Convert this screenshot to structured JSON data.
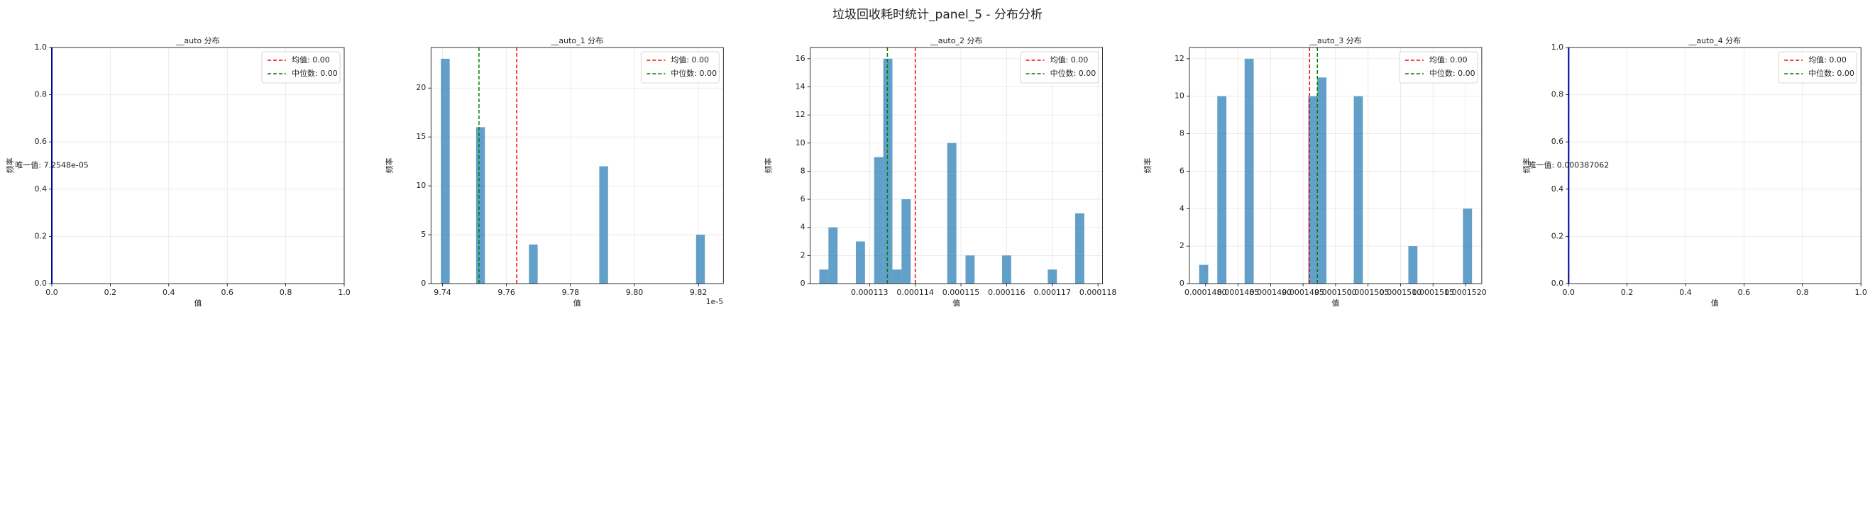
{
  "title": "垃圾回收耗时统计_panel_5 - 分布分析",
  "chart_data": [
    {
      "type": "single_value",
      "title": "__auto 分布",
      "xlabel": "值",
      "ylabel": "频率",
      "value": 7.2548e-05,
      "annotation": "唯一值: 7.2548e-05",
      "color": "blue",
      "mean": {
        "value": 7.2548e-05,
        "label": "均值: 0.00",
        "color": "red"
      },
      "median": {
        "value": 7.2548e-05,
        "label": "中位数: 0.00",
        "color": "green"
      },
      "xlim": [
        0,
        1
      ],
      "ylim": [
        0,
        1
      ],
      "xticks": [
        {
          "value": 0,
          "label": "0.0"
        },
        0.2,
        0.4,
        0.6,
        0.8,
        {
          "value": 1,
          "label": "1.0"
        }
      ],
      "yticks": [
        {
          "value": 0,
          "label": "0.0"
        },
        0.2,
        0.4,
        0.6,
        0.8,
        {
          "value": 1,
          "label": "1.0"
        }
      ],
      "grid": true,
      "legend": "upper right"
    },
    {
      "type": "histogram",
      "title": "__auto_1 分布",
      "xlabel": "值",
      "ylabel": "频率",
      "x_offset": "1e-5",
      "color": "#1f77b4",
      "alpha": 0.7,
      "bins": [
        9.7395,
        9.74225,
        9.745,
        9.74775,
        9.7505,
        9.75325,
        9.756,
        9.75875,
        9.7615,
        9.76425,
        9.767,
        9.76975,
        9.7725,
        9.77525,
        9.778,
        9.78075,
        9.7835,
        9.78625,
        9.789,
        9.79175,
        9.7945,
        9.79725,
        9.8,
        9.80275,
        9.8055,
        9.80825,
        9.811,
        9.81375,
        9.8165,
        9.81925,
        9.822
      ],
      "counts": [
        23,
        0,
        0,
        0,
        16,
        0,
        0,
        0,
        0,
        0,
        4,
        0,
        0,
        0,
        0,
        0,
        0,
        0,
        12,
        0,
        0,
        0,
        0,
        0,
        0,
        0,
        0,
        0,
        0,
        5
      ],
      "mean": {
        "value": 9.7632,
        "label": "均值: 0.00",
        "color": "red"
      },
      "median": {
        "value": 9.7514,
        "label": "中位数: 0.00",
        "color": "green"
      },
      "xlim": [
        9.7364,
        9.8278
      ],
      "ylim": [
        0,
        24.15
      ],
      "xticks": [
        9.74,
        9.76,
        9.78,
        {
          "value": 9.8,
          "label": "9.80"
        },
        9.82
      ],
      "yticks": [
        0,
        5,
        10,
        15,
        20
      ],
      "grid": true,
      "legend": "upper right"
    },
    {
      "type": "histogram",
      "title": "__auto_2 分布",
      "xlabel": "值",
      "ylabel": "频率",
      "color": "#1f77b4",
      "alpha": 0.7,
      "bins": [
        0.0001119,
        0.0001121,
        0.0001123,
        0.0001125,
        0.0001127,
        0.0001129,
        0.0001131,
        0.0001133,
        0.0001135,
        0.0001137,
        0.0001139,
        0.0001141,
        0.0001143,
        0.0001145,
        0.0001147,
        0.0001149,
        0.0001151,
        0.0001153,
        0.0001155,
        0.0001157,
        0.0001159,
        0.0001161,
        0.0001163,
        0.0001165,
        0.0001167,
        0.0001169,
        0.0001171,
        0.0001173,
        0.0001175,
        0.0001177,
        0.0001179
      ],
      "counts": [
        1,
        4,
        0,
        0,
        3,
        0,
        9,
        16,
        1,
        6,
        0,
        0,
        0,
        0,
        10,
        0,
        2,
        0,
        0,
        0,
        2,
        0,
        0,
        0,
        0,
        1,
        0,
        0,
        5,
        0
      ],
      "mean": {
        "value": 0.000114,
        "label": "均值: 0.00",
        "color": "red"
      },
      "median": {
        "value": 0.00011339,
        "label": "中位数: 0.00",
        "color": "green"
      },
      "xlim": [
        0.0001117,
        0.0001181
      ],
      "ylim": [
        0,
        16.8
      ],
      "xticks": [
        0.000113,
        0.000114,
        0.000115,
        0.000116,
        0.000117,
        0.000118
      ],
      "yticks": [
        0,
        2,
        4,
        6,
        8,
        10,
        12,
        14,
        16
      ],
      "grid": true,
      "legend": "upper right"
    },
    {
      "type": "histogram",
      "title": "__auto_3 分布",
      "xlabel": "值",
      "ylabel": "频率",
      "color": "#1f77b4",
      "alpha": 0.7,
      "bins": [
        0.0001479,
        0.00014804,
        0.00014818,
        0.00014832,
        0.00014846,
        0.0001486,
        0.00014874,
        0.00014888,
        0.00014902,
        0.00014916,
        0.0001493,
        0.00014944,
        0.00014958,
        0.00014972,
        0.00014986,
        0.00015,
        0.00015014,
        0.00015028,
        0.00015042,
        0.00015056,
        0.0001507,
        0.00015084,
        0.00015098,
        0.00015112,
        0.00015126,
        0.0001514,
        0.00015154,
        0.00015168,
        0.00015182,
        0.00015196,
        0.0001521
      ],
      "counts": [
        1,
        0,
        10,
        0,
        0,
        12,
        0,
        0,
        0,
        0,
        0,
        0,
        10,
        11,
        0,
        0,
        0,
        10,
        0,
        0,
        0,
        0,
        0,
        2,
        0,
        0,
        0,
        0,
        0,
        4
      ],
      "mean": {
        "value": 0.0001496,
        "label": "均值: 0.00",
        "color": "red"
      },
      "median": {
        "value": 0.00014972,
        "label": "中位数: 0.00",
        "color": "green"
      },
      "xlim": [
        0.00014775,
        0.00015225
      ],
      "ylim": [
        0,
        12.6
      ],
      "xticks": [
        {
          "value": 0.000148,
          "label": "0.0001480"
        },
        {
          "value": 0.0001485,
          "label": "0.0001485"
        },
        {
          "value": 0.000149,
          "label": "0.0001490"
        },
        {
          "value": 0.0001495,
          "label": "0.0001495"
        },
        {
          "value": 0.00015,
          "label": "0.0001500"
        },
        {
          "value": 0.0001505,
          "label": "0.0001505"
        },
        {
          "value": 0.000151,
          "label": "0.0001510"
        },
        {
          "value": 0.0001515,
          "label": "0.0001515"
        },
        {
          "value": 0.000152,
          "label": "0.0001520"
        }
      ],
      "yticks": [
        0,
        2,
        4,
        6,
        8,
        10,
        12
      ],
      "grid": true,
      "legend": "upper right"
    },
    {
      "type": "single_value",
      "title": "__auto_4 分布",
      "xlabel": "值",
      "ylabel": "频率",
      "value": 0.000387062,
      "annotation": "唯一值: 0.000387062",
      "color": "blue",
      "mean": {
        "value": 0.000387062,
        "label": "均值: 0.00",
        "color": "red"
      },
      "median": {
        "value": 0.000387062,
        "label": "中位数: 0.00",
        "color": "green"
      },
      "xlim": [
        0,
        1
      ],
      "ylim": [
        0,
        1
      ],
      "xticks": [
        {
          "value": 0,
          "label": "0.0"
        },
        0.2,
        0.4,
        0.6,
        0.8,
        {
          "value": 1,
          "label": "1.0"
        }
      ],
      "yticks": [
        {
          "value": 0,
          "label": "0.0"
        },
        0.2,
        0.4,
        0.6,
        0.8,
        {
          "value": 1,
          "label": "1.0"
        }
      ],
      "grid": true,
      "legend": "upper right"
    }
  ]
}
